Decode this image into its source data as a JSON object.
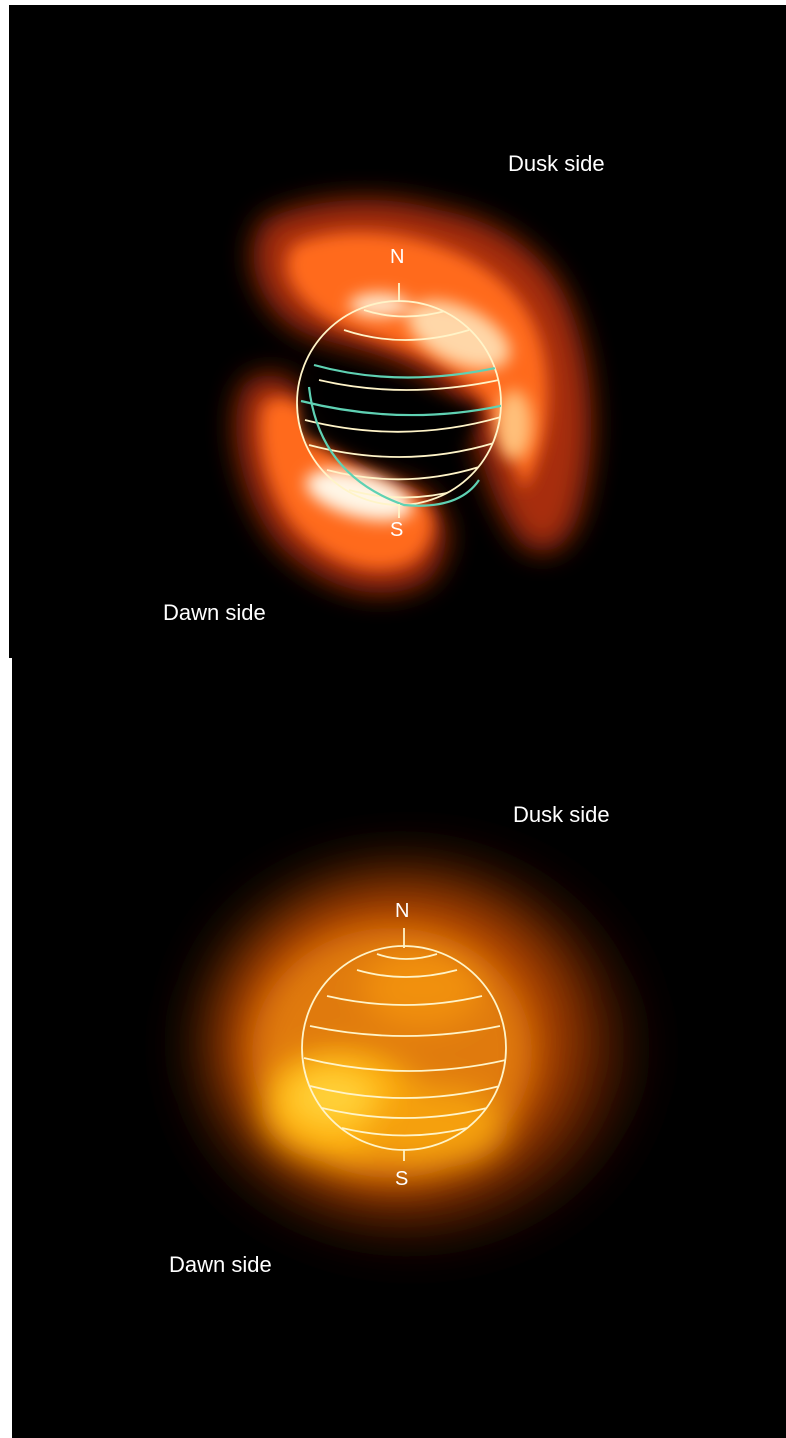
{
  "panels": [
    {
      "id": "top",
      "dusk_label": "Dusk side",
      "dawn_label": "Dawn side",
      "north_label": "N",
      "south_label": "S",
      "emission_color": "#ff6a1a",
      "highlight_color": "#fff6e6",
      "band_color": "#5fd1b3"
    },
    {
      "id": "bottom",
      "dusk_label": "Dusk side",
      "dawn_label": "Dawn side",
      "north_label": "N",
      "south_label": "S",
      "emission_color": "#ff9a10",
      "highlight_color": "#ffd23a"
    }
  ],
  "colors": {
    "background": "#000000",
    "globe_lines": "#fff4c8",
    "text": "#ffffff"
  }
}
